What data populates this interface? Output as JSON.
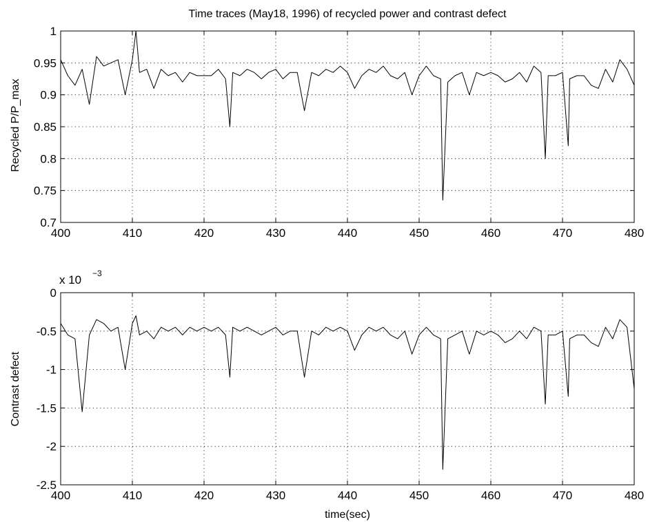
{
  "chart_data": [
    {
      "type": "line",
      "title": "Time traces (May18, 1996) of recycled power and contrast defect",
      "xlabel": "",
      "ylabel": "Recycled P/P_max",
      "xlim": [
        400,
        480
      ],
      "ylim": [
        0.7,
        1.0
      ],
      "xticks": [
        "400",
        "410",
        "420",
        "430",
        "440",
        "450",
        "460",
        "470",
        "480"
      ],
      "yticks": [
        "0.7",
        "0.75",
        "0.8",
        "0.85",
        "0.9",
        "0.95",
        "1"
      ],
      "grid": true,
      "x": [
        400,
        401,
        402,
        403,
        404,
        405,
        406,
        407,
        408,
        409,
        410,
        410.5,
        411,
        412,
        413,
        414,
        415,
        416,
        417,
        418,
        419,
        420,
        421,
        422,
        423,
        423.6,
        424,
        425,
        426,
        427,
        428,
        429,
        430,
        431,
        432,
        433,
        434,
        435,
        436,
        437,
        438,
        439,
        440,
        441,
        442,
        443,
        444,
        445,
        446,
        447,
        448,
        449,
        450,
        451,
        452,
        453,
        453.3,
        454,
        455,
        456,
        457,
        458,
        459,
        460,
        461,
        462,
        463,
        464,
        465,
        466,
        467,
        467.6,
        468,
        469,
        470,
        470.8,
        471,
        472,
        473,
        474,
        475,
        476,
        477,
        478,
        479,
        480
      ],
      "series": [
        {
          "values": [
            0.955,
            0.93,
            0.915,
            0.94,
            0.885,
            0.96,
            0.945,
            0.95,
            0.955,
            0.9,
            0.955,
            1.0,
            0.935,
            0.94,
            0.91,
            0.94,
            0.93,
            0.935,
            0.92,
            0.935,
            0.93,
            0.93,
            0.93,
            0.94,
            0.925,
            0.85,
            0.935,
            0.93,
            0.94,
            0.935,
            0.925,
            0.935,
            0.94,
            0.925,
            0.935,
            0.935,
            0.875,
            0.935,
            0.93,
            0.94,
            0.935,
            0.945,
            0.935,
            0.91,
            0.93,
            0.94,
            0.935,
            0.945,
            0.93,
            0.925,
            0.935,
            0.9,
            0.93,
            0.945,
            0.93,
            0.925,
            0.735,
            0.92,
            0.93,
            0.935,
            0.9,
            0.935,
            0.93,
            0.935,
            0.93,
            0.92,
            0.925,
            0.935,
            0.92,
            0.945,
            0.935,
            0.8,
            0.93,
            0.93,
            0.935,
            0.82,
            0.925,
            0.93,
            0.93,
            0.915,
            0.91,
            0.94,
            0.92,
            0.955,
            0.94,
            0.915
          ]
        }
      ]
    },
    {
      "type": "line",
      "title": "",
      "xlabel": "time(sec)",
      "ylabel": "Contrast defect",
      "exponent_label": "x 10",
      "exponent_power": "−3",
      "xlim": [
        400,
        480
      ],
      "ylim": [
        -2.5,
        0
      ],
      "scale": 0.001,
      "xticks": [
        "400",
        "410",
        "420",
        "430",
        "440",
        "450",
        "460",
        "470",
        "480"
      ],
      "yticks": [
        "0",
        "-0.5",
        "-1",
        "-1.5",
        "-2",
        "-2.5"
      ],
      "grid": true,
      "x": [
        400,
        401,
        402,
        403,
        404,
        405,
        406,
        407,
        408,
        409,
        410,
        410.5,
        411,
        412,
        413,
        414,
        415,
        416,
        417,
        418,
        419,
        420,
        421,
        422,
        423,
        423.6,
        424,
        425,
        426,
        427,
        428,
        429,
        430,
        431,
        432,
        433,
        434,
        435,
        436,
        437,
        438,
        439,
        440,
        441,
        442,
        443,
        444,
        445,
        446,
        447,
        448,
        449,
        450,
        451,
        452,
        453,
        453.3,
        454,
        455,
        456,
        457,
        458,
        459,
        460,
        461,
        462,
        463,
        464,
        465,
        466,
        467,
        467.6,
        468,
        469,
        470,
        470.8,
        471,
        472,
        473,
        474,
        475,
        476,
        477,
        478,
        479,
        480
      ],
      "series": [
        {
          "values": [
            -0.4,
            -0.55,
            -0.6,
            -1.55,
            -0.55,
            -0.35,
            -0.4,
            -0.5,
            -0.45,
            -1.0,
            -0.4,
            -0.3,
            -0.55,
            -0.5,
            -0.6,
            -0.45,
            -0.5,
            -0.45,
            -0.55,
            -0.45,
            -0.5,
            -0.45,
            -0.5,
            -0.45,
            -0.55,
            -1.1,
            -0.45,
            -0.5,
            -0.45,
            -0.5,
            -0.55,
            -0.5,
            -0.45,
            -0.55,
            -0.5,
            -0.5,
            -1.1,
            -0.5,
            -0.55,
            -0.45,
            -0.5,
            -0.45,
            -0.5,
            -0.75,
            -0.55,
            -0.45,
            -0.5,
            -0.45,
            -0.55,
            -0.6,
            -0.5,
            -0.8,
            -0.55,
            -0.45,
            -0.55,
            -0.6,
            -2.3,
            -0.6,
            -0.55,
            -0.5,
            -0.8,
            -0.5,
            -0.55,
            -0.5,
            -0.55,
            -0.65,
            -0.6,
            -0.5,
            -0.6,
            -0.45,
            -0.5,
            -1.45,
            -0.55,
            -0.55,
            -0.5,
            -1.35,
            -0.6,
            -0.55,
            -0.55,
            -0.65,
            -0.7,
            -0.45,
            -0.6,
            -0.35,
            -0.45,
            -1.25
          ]
        }
      ]
    }
  ]
}
